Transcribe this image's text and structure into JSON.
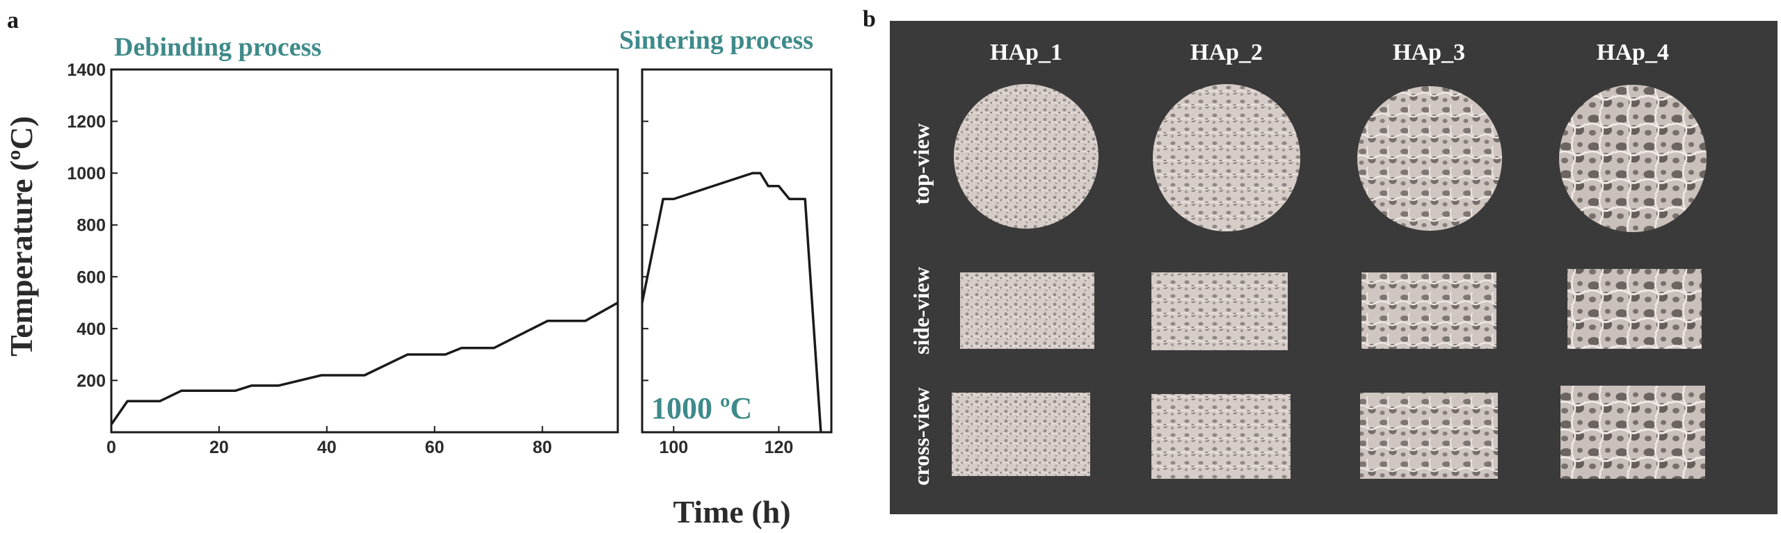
{
  "chart_data": [
    {
      "type": "line",
      "panel_label": "a",
      "xlabel": "Time (h)",
      "ylabel": "Temperature (ºC)",
      "ylim": [
        0,
        1400
      ],
      "yticks": [
        "200",
        "400",
        "600",
        "800",
        "1000",
        "1200",
        "1400"
      ],
      "grid": false,
      "subplots": [
        {
          "title": "Debinding process",
          "xlim": [
            0,
            94
          ],
          "xticks": [
            "0",
            "20",
            "40",
            "60",
            "80"
          ],
          "series": [
            {
              "x": [
                0,
                3,
                9,
                13,
                23,
                26,
                31,
                39,
                47,
                55,
                62,
                65,
                71,
                81,
                88,
                94
              ],
              "y": [
                30,
                120,
                120,
                160,
                160,
                180,
                180,
                220,
                220,
                300,
                300,
                325,
                325,
                430,
                430,
                500
              ]
            }
          ]
        },
        {
          "title": "Sintering process",
          "annotation": "1000 ºC",
          "xlim": [
            94,
            130
          ],
          "xticks": [
            "100",
            "120"
          ],
          "series": [
            {
              "x": [
                94,
                98,
                100,
                115,
                116.5,
                118,
                120,
                122,
                125,
                128
              ],
              "y": [
                500,
                900,
                900,
                1000,
                1000,
                950,
                950,
                900,
                900,
                0
              ]
            }
          ]
        }
      ]
    }
  ],
  "panel_b": {
    "panel_label": "b",
    "columns": [
      "HAp_1",
      "HAp_2",
      "HAp_3",
      "HAp_4"
    ],
    "rows": [
      "top-view",
      "side-view",
      "cross-view"
    ],
    "colors": {
      "background": "#3a3a3a",
      "sample_base": "#d6ccc8",
      "sample_pore": "#8f8783",
      "sample_highlight": "#ede6e3"
    }
  }
}
